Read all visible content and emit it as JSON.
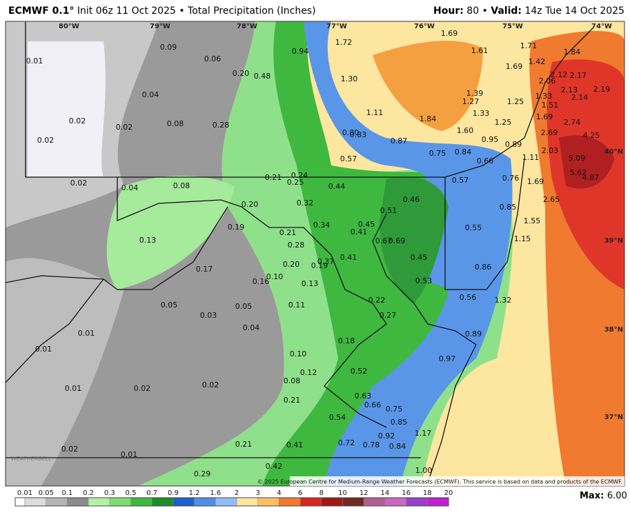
{
  "header": {
    "model": "ECMWF 0.1°",
    "init": "Init 06z 11 Oct 2025 • Total Precipitation (Inches)",
    "hour_label": "Hour:",
    "hour": "80 •",
    "valid_label": "Valid:",
    "valid": "14z Tue 14 Oct 2025"
  },
  "longitude_labels": [
    "80°W",
    "79°W",
    "78°W",
    "77°W",
    "76°W",
    "75°W",
    "74°W"
  ],
  "latitude_labels": [
    "40°N",
    "39°N",
    "38°N",
    "37°N"
  ],
  "point_labels": [
    "0.01",
    "0.09",
    "0.06",
    "0.20",
    "0.48",
    "0.94",
    "1.72",
    "1.69",
    "1.61",
    "1.71",
    "1.84",
    "1.42",
    "1.69",
    "1.30",
    "0.04",
    "0.02",
    "0.02",
    "0.08",
    "0.28",
    "1.11",
    "1.39",
    "1.27",
    "1.33",
    "1.25",
    "1.33",
    "1.51",
    "1.69",
    "2.12",
    "2.06",
    "2.17",
    "2.13",
    "2.19",
    "2.14",
    "1.84",
    "1.60",
    "1.25",
    "2.69",
    "2.74",
    "0.02",
    "0.80",
    "0.83",
    "0.87",
    "0.95",
    "0.89",
    "4.25",
    "0.57",
    "0.75",
    "0.84",
    "0.66",
    "2.03",
    "1.11",
    "5.09",
    "5.62",
    "4.87",
    "0.02",
    "0.04",
    "0.08",
    "0.21",
    "0.24",
    "0.25",
    "0.44",
    "0.57",
    "0.76",
    "1.69",
    "0.46",
    "0.20",
    "0.32",
    "0.51",
    "0.85",
    "2.65",
    "0.19",
    "0.34",
    "0.45",
    "0.41",
    "0.55",
    "1.55",
    "0.13",
    "0.21",
    "0.28",
    "0.67",
    "0.69",
    "1.15",
    "0.17",
    "0.20",
    "0.19",
    "0.37",
    "0.41",
    "0.45",
    "0.86",
    "0.10",
    "0.16",
    "0.13",
    "0.53",
    "0.05",
    "0.05",
    "0.11",
    "0.22",
    "0.56",
    "1.32",
    "0.03",
    "0.27",
    "0.04",
    "0.01",
    "0.18",
    "0.89",
    "0.01",
    "0.10",
    "0.97",
    "0.12",
    "0.52",
    "0.08",
    "0.02",
    "0.01",
    "0.02",
    "0.21",
    "0.63",
    "0.66",
    "0.75",
    "0.54",
    "0.85",
    "1.17",
    "0.92",
    "0.72",
    "0.78",
    "0.84",
    "0.21",
    "0.41",
    "0.02",
    "0.01",
    "0.42",
    "1.00",
    "0.29"
  ],
  "colorbar_labels": [
    "0.01",
    "0.05",
    "0.1",
    "0.2",
    "0.3",
    "0.5",
    "0.7",
    "0.9",
    "1.2",
    "1.6",
    "2",
    "3",
    "4",
    "6",
    "8",
    "10",
    "12",
    "14",
    "16",
    "18",
    "20"
  ],
  "max_label": "Max:",
  "max_value": "6.00",
  "credit": "© 2025 European Centre for Medium-Range Weather Forecasts (ECMWF). This service is based on data and products of the ECMWF.",
  "logo": "WEATHERBELL"
}
